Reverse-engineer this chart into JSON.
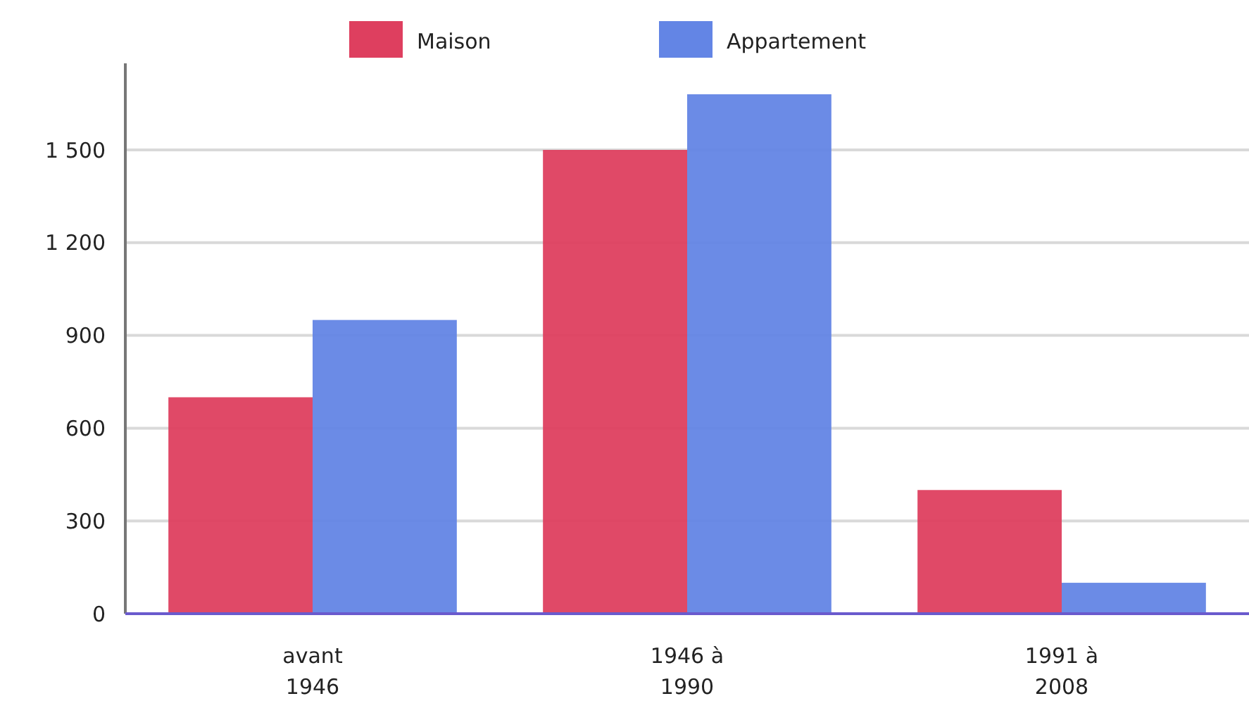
{
  "chart_data": {
    "type": "bar",
    "categories": [
      "avant 1946",
      "1946 à 1990",
      "1991 à 2008"
    ],
    "series": [
      {
        "name": "Maison",
        "color": "#de3f5f",
        "values": [
          700,
          1500,
          400
        ]
      },
      {
        "name": "Appartement",
        "color": "#6385e5",
        "values": [
          950,
          1680,
          100
        ]
      }
    ],
    "ylim": [
      0,
      1780
    ],
    "yticks": [
      0,
      300,
      600,
      900,
      {
        "value": 1200,
        "label": "1 200"
      },
      {
        "value": 1500,
        "label": "1 500"
      }
    ],
    "grid": "y",
    "legend": "top"
  }
}
